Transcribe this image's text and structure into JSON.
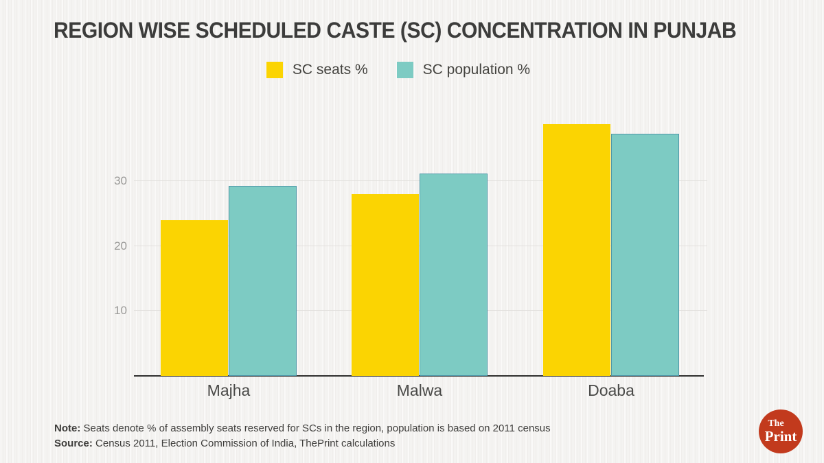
{
  "header": {
    "title": "REGION WISE SCHEDULED CASTE (SC) CONCENTRATION IN PUNJAB"
  },
  "chart_data": {
    "type": "bar",
    "title": "REGION WISE SCHEDULED CASTE (SC) CONCENTRATION IN PUNJAB",
    "categories": [
      "Majha",
      "Malwa",
      "Doaba"
    ],
    "series": [
      {
        "name": "SC seats %",
        "color": "#fbd402",
        "border": "",
        "values": [
          24,
          28,
          38.8
        ]
      },
      {
        "name": "SC population %",
        "color": "#7dcbc3",
        "border": "#4e97a8",
        "values": [
          29.2,
          31.1,
          37.3
        ]
      }
    ],
    "xlabel": "",
    "ylabel": "",
    "yticks": [
      10,
      20,
      30
    ],
    "ylim": [
      0,
      42
    ],
    "grid": true,
    "legend_position": "top-center"
  },
  "footer": {
    "note_label": "Note:",
    "note_text": " Seats denote % of assembly seats reserved for SCs in the region, population is based on 2011 census",
    "source_label": "Source:",
    "source_text": " Census 2011, Election Commission of India, ThePrint calculations"
  },
  "logo": {
    "line1": "The",
    "line2": "Print",
    "bg_color": "#c23a1d"
  }
}
